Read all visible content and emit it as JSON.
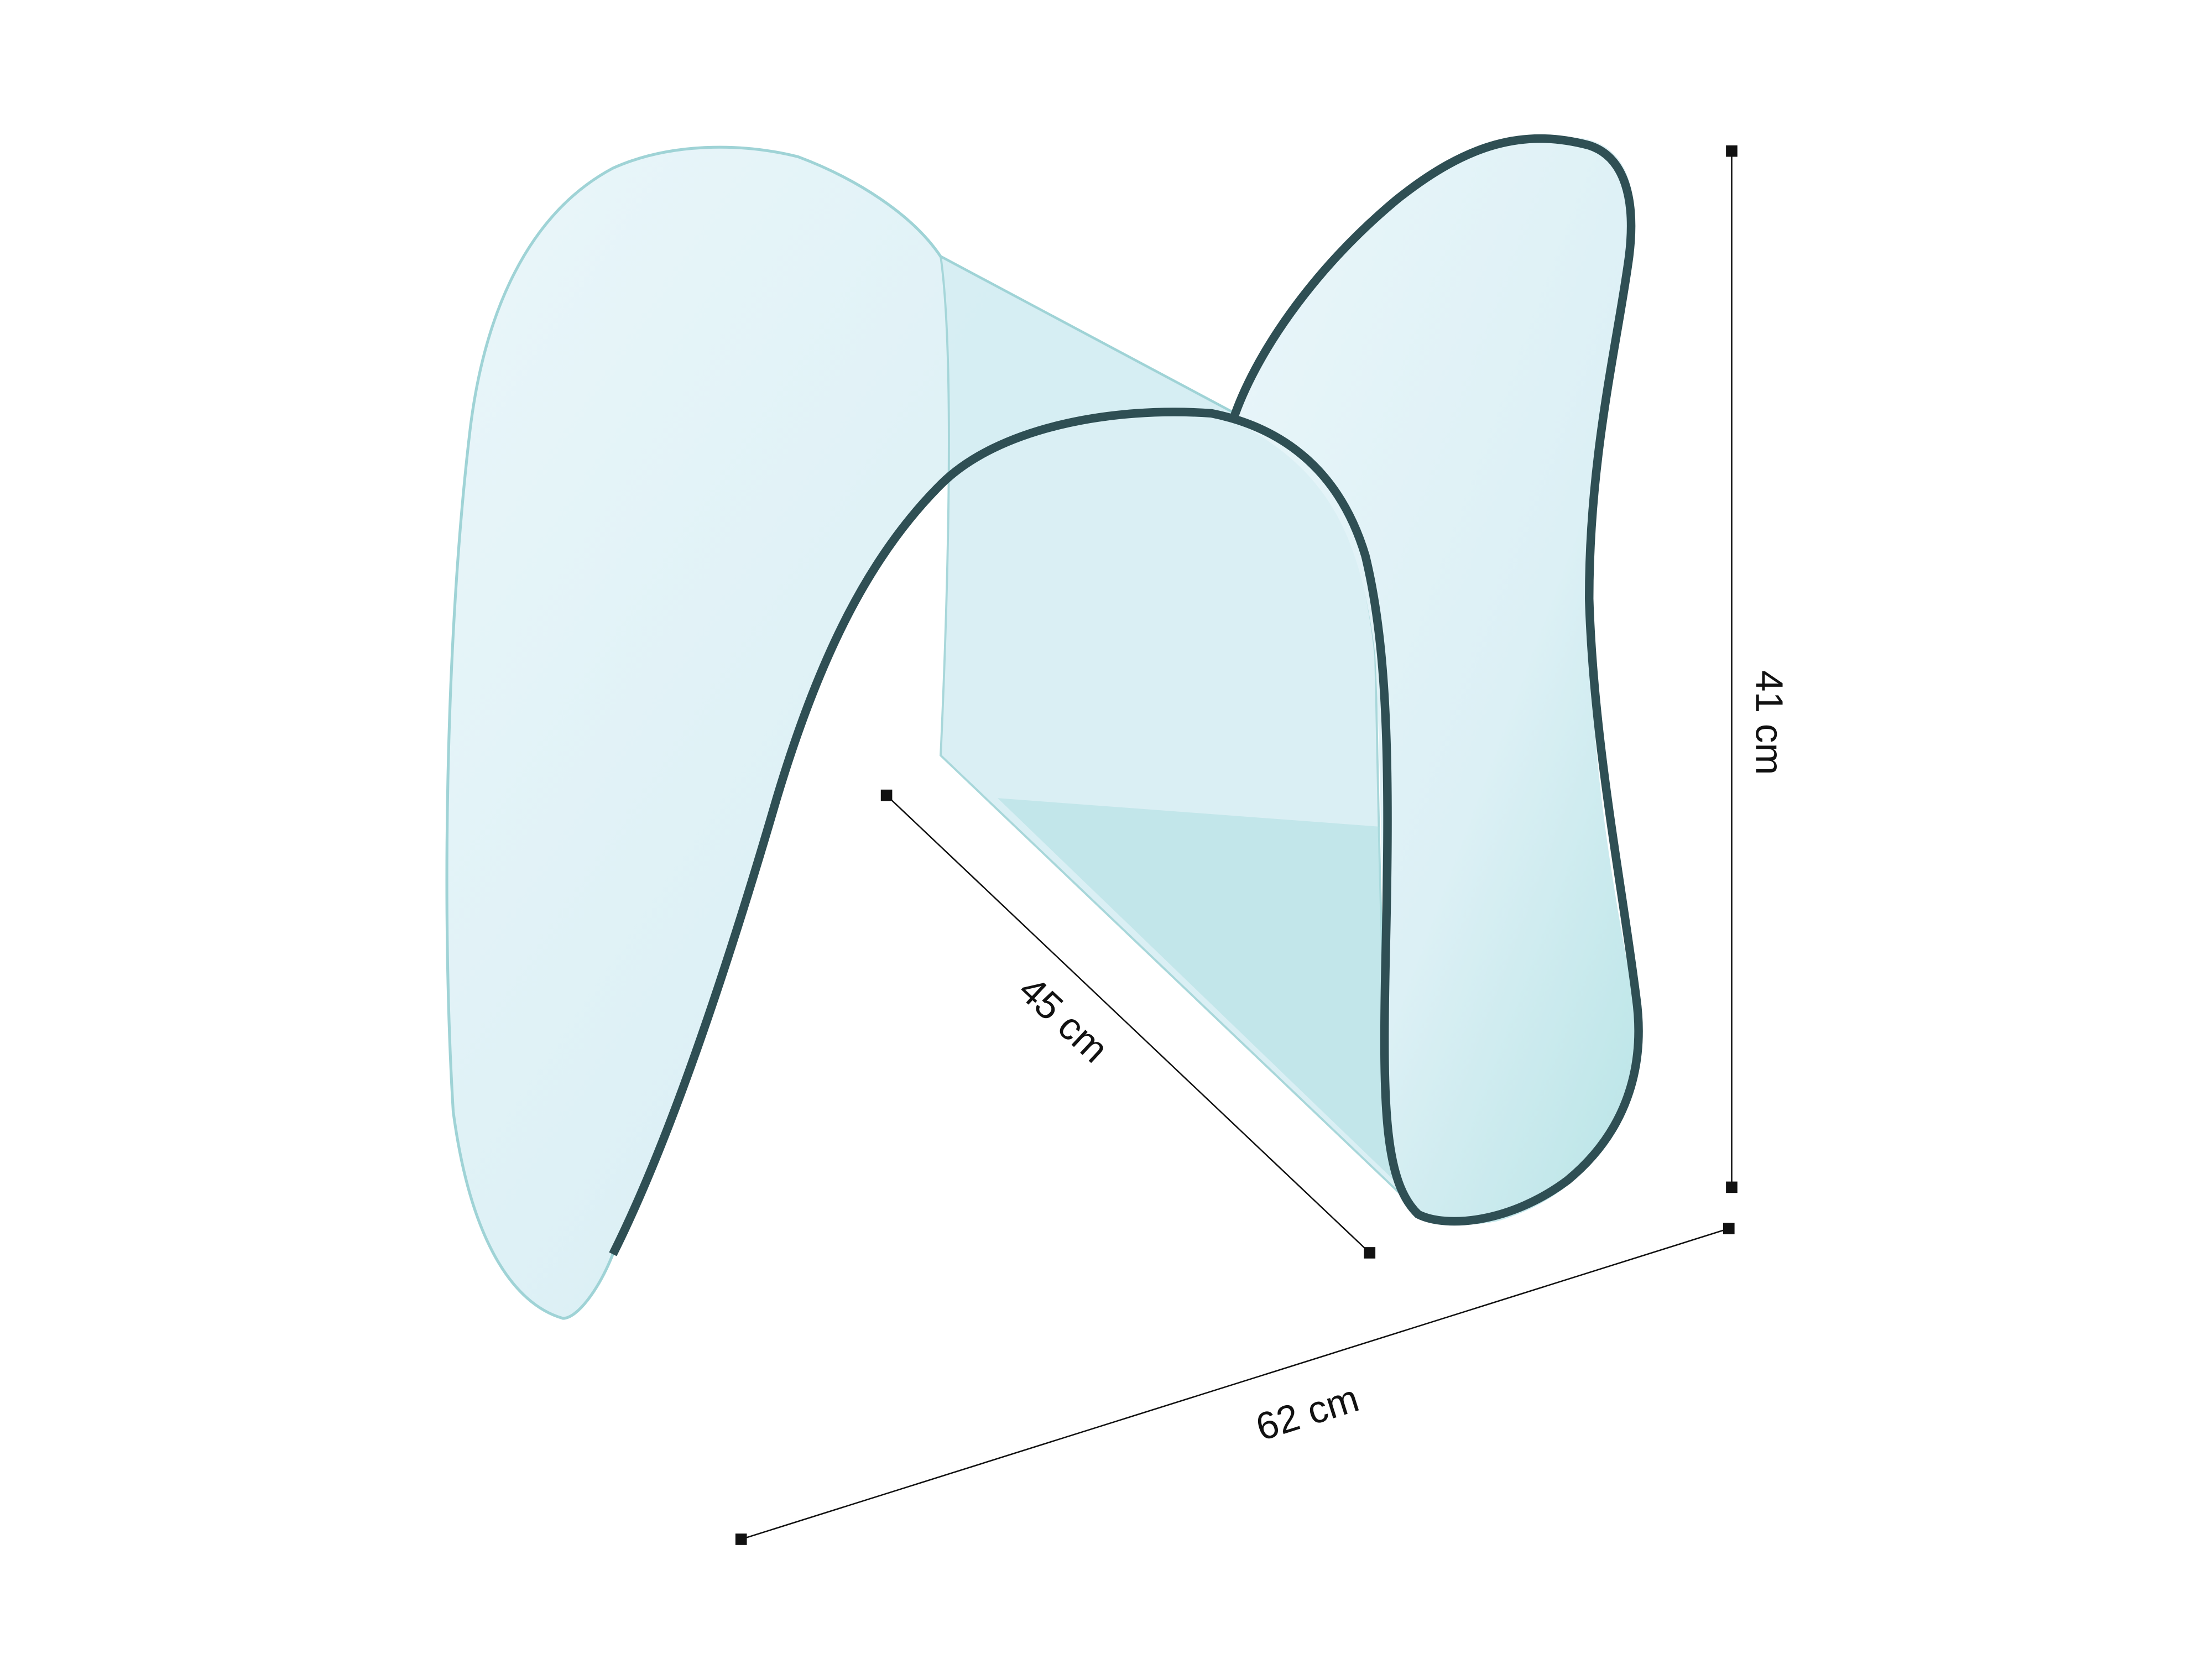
{
  "dimensions": {
    "height": "41 cm",
    "depth": "45 cm",
    "width": "62 cm"
  },
  "colors": {
    "glass_fill": "#dff1f6",
    "glass_edge": "#2f4f54",
    "glass_tint": "#a9dde0",
    "dimension_line": "#111111"
  }
}
